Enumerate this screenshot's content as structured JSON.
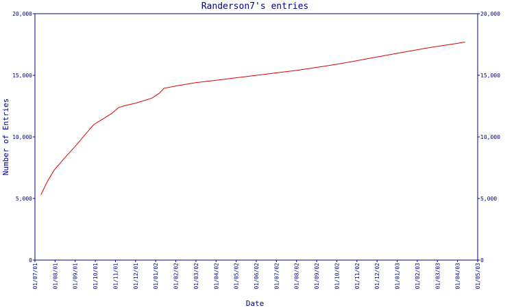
{
  "chart_data": {
    "type": "line",
    "title": "Randerson7's entries",
    "xlabel": "Date",
    "ylabel": "Number of Entries",
    "ylim": [
      0,
      20000
    ],
    "yticks": [
      0,
      5000,
      10000,
      15000,
      20000
    ],
    "ytick_labels": [
      "0",
      "5,000",
      "10,000",
      "15,000",
      "20,000"
    ],
    "right_axis": true,
    "grid": false,
    "xlim": [
      "2001-07-01",
      "2003-05-01"
    ],
    "xtick_labels": [
      "01/07/01",
      "01/08/01",
      "01/09/01",
      "01/10/01",
      "01/11/01",
      "01/12/01",
      "01/01/02",
      "01/02/02",
      "01/03/02",
      "01/04/02",
      "01/05/02",
      "01/06/02",
      "01/07/02",
      "01/08/02",
      "01/09/02",
      "01/10/02",
      "01/11/02",
      "01/12/02",
      "01/01/03",
      "01/02/03",
      "01/03/03",
      "01/04/03",
      "01/05/03"
    ],
    "series_color": "#dd0000",
    "axis_color": "#000080",
    "points": [
      {
        "x": "2001-07-10",
        "y": 5300
      },
      {
        "x": "2001-07-20",
        "y": 6400
      },
      {
        "x": "2001-07-30",
        "y": 7300
      },
      {
        "x": "2001-08-15",
        "y": 8300
      },
      {
        "x": "2001-09-01",
        "y": 9300
      },
      {
        "x": "2001-09-15",
        "y": 10200
      },
      {
        "x": "2001-09-28",
        "y": 11000
      },
      {
        "x": "2001-10-10",
        "y": 11400
      },
      {
        "x": "2001-10-25",
        "y": 11900
      },
      {
        "x": "2001-11-05",
        "y": 12400
      },
      {
        "x": "2001-11-15",
        "y": 12550
      },
      {
        "x": "2001-12-01",
        "y": 12750
      },
      {
        "x": "2001-12-25",
        "y": 13150
      },
      {
        "x": "2002-01-05",
        "y": 13550
      },
      {
        "x": "2002-01-12",
        "y": 13950
      },
      {
        "x": "2002-02-01",
        "y": 14150
      },
      {
        "x": "2002-03-01",
        "y": 14400
      },
      {
        "x": "2002-04-01",
        "y": 14600
      },
      {
        "x": "2002-05-01",
        "y": 14800
      },
      {
        "x": "2002-06-01",
        "y": 15000
      },
      {
        "x": "2002-07-01",
        "y": 15200
      },
      {
        "x": "2002-08-01",
        "y": 15400
      },
      {
        "x": "2002-09-01",
        "y": 15650
      },
      {
        "x": "2002-10-01",
        "y": 15900
      },
      {
        "x": "2002-11-01",
        "y": 16200
      },
      {
        "x": "2002-12-01",
        "y": 16500
      },
      {
        "x": "2003-01-01",
        "y": 16800
      },
      {
        "x": "2003-02-01",
        "y": 17100
      },
      {
        "x": "2003-03-01",
        "y": 17350
      },
      {
        "x": "2003-04-01",
        "y": 17600
      },
      {
        "x": "2003-04-12",
        "y": 17700
      }
    ]
  }
}
